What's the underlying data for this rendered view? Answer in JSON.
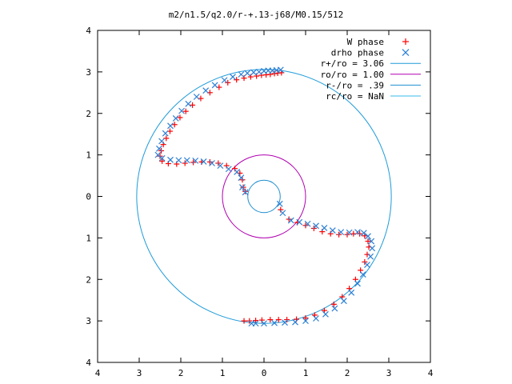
{
  "chart_data": {
    "type": "scatter",
    "title": "m2/n1.5/q2.0/r-+.13-j68/M0.15/512",
    "xlabel": "",
    "ylabel": "",
    "xlim": [
      -4,
      4
    ],
    "ylim": [
      -4,
      4
    ],
    "x_ticks": [
      -4,
      -3,
      -2,
      -1,
      0,
      1,
      2,
      3,
      4
    ],
    "y_ticks": [
      4,
      3,
      2,
      1,
      0,
      -1,
      -2,
      -3,
      -4
    ],
    "x_tick_labels": [
      "4",
      "3",
      "2",
      "1",
      "0",
      "1",
      "2",
      "3",
      "4"
    ],
    "y_tick_labels": [
      "4",
      "3",
      "2",
      "1",
      "0",
      "1",
      "2",
      "3",
      "4"
    ],
    "grid": false,
    "legend_position": "top-right",
    "series": [
      {
        "name": "W phase",
        "marker": "plus",
        "color": "#ff0000",
        "points": [
          [
            0.42,
            2.98
          ],
          [
            0.33,
            2.97
          ],
          [
            0.25,
            2.96
          ],
          [
            0.15,
            2.94
          ],
          [
            0.05,
            2.93
          ],
          [
            -0.06,
            2.92
          ],
          [
            -0.18,
            2.9
          ],
          [
            -0.32,
            2.88
          ],
          [
            -0.48,
            2.85
          ],
          [
            -0.66,
            2.81
          ],
          [
            -0.87,
            2.74
          ],
          [
            -1.08,
            2.63
          ],
          [
            -1.3,
            2.5
          ],
          [
            -1.52,
            2.36
          ],
          [
            -1.72,
            2.2
          ],
          [
            -1.88,
            2.05
          ],
          [
            -2.02,
            1.9
          ],
          [
            -2.15,
            1.73
          ],
          [
            -2.26,
            1.57
          ],
          [
            -2.35,
            1.4
          ],
          [
            -2.42,
            1.25
          ],
          [
            -2.47,
            1.1
          ],
          [
            -2.5,
            0.97
          ],
          [
            -2.45,
            0.85
          ],
          [
            -2.3,
            0.79
          ],
          [
            -2.1,
            0.78
          ],
          [
            -1.9,
            0.8
          ],
          [
            -1.7,
            0.82
          ],
          [
            -1.5,
            0.83
          ],
          [
            -1.3,
            0.83
          ],
          [
            -1.1,
            0.8
          ],
          [
            -0.9,
            0.74
          ],
          [
            -0.7,
            0.67
          ],
          [
            -0.58,
            0.56
          ],
          [
            -0.52,
            0.4
          ],
          [
            -0.5,
            0.22
          ],
          [
            -0.45,
            0.12
          ],
          [
            0.4,
            -0.32
          ],
          [
            0.6,
            -0.55
          ],
          [
            0.8,
            -0.63
          ],
          [
            1.0,
            -0.7
          ],
          [
            1.2,
            -0.77
          ],
          [
            1.4,
            -0.85
          ],
          [
            1.6,
            -0.9
          ],
          [
            1.8,
            -0.92
          ],
          [
            2.0,
            -0.92
          ],
          [
            2.15,
            -0.9
          ],
          [
            2.3,
            -0.9
          ],
          [
            2.42,
            -0.95
          ],
          [
            2.5,
            -1.08
          ],
          [
            2.52,
            -1.22
          ],
          [
            2.48,
            -1.4
          ],
          [
            2.42,
            -1.58
          ],
          [
            2.32,
            -1.78
          ],
          [
            2.2,
            -2.0
          ],
          [
            2.05,
            -2.22
          ],
          [
            1.88,
            -2.42
          ],
          [
            1.68,
            -2.6
          ],
          [
            1.45,
            -2.75
          ],
          [
            1.22,
            -2.86
          ],
          [
            1.0,
            -2.93
          ],
          [
            0.78,
            -2.96
          ],
          [
            0.55,
            -2.97
          ],
          [
            0.35,
            -2.97
          ],
          [
            0.15,
            -2.97
          ],
          [
            -0.05,
            -2.98
          ],
          [
            -0.2,
            -2.99
          ],
          [
            -0.35,
            -3.0
          ],
          [
            -0.48,
            -3.0
          ]
        ]
      },
      {
        "name": "drho phase",
        "marker": "cross",
        "color": "#2a7fd5",
        "points": [
          [
            0.4,
            3.05
          ],
          [
            0.3,
            3.04
          ],
          [
            0.2,
            3.03
          ],
          [
            0.1,
            3.03
          ],
          [
            0.0,
            3.02
          ],
          [
            -0.12,
            3.0
          ],
          [
            -0.25,
            2.99
          ],
          [
            -0.4,
            2.97
          ],
          [
            -0.55,
            2.94
          ],
          [
            -0.75,
            2.88
          ],
          [
            -0.95,
            2.8
          ],
          [
            -1.18,
            2.68
          ],
          [
            -1.4,
            2.55
          ],
          [
            -1.62,
            2.4
          ],
          [
            -1.82,
            2.23
          ],
          [
            -1.98,
            2.06
          ],
          [
            -2.12,
            1.88
          ],
          [
            -2.25,
            1.7
          ],
          [
            -2.37,
            1.52
          ],
          [
            -2.46,
            1.33
          ],
          [
            -2.52,
            1.15
          ],
          [
            -2.55,
            1.0
          ],
          [
            -2.45,
            0.92
          ],
          [
            -2.25,
            0.88
          ],
          [
            -2.05,
            0.87
          ],
          [
            -1.85,
            0.87
          ],
          [
            -1.65,
            0.86
          ],
          [
            -1.45,
            0.84
          ],
          [
            -1.25,
            0.8
          ],
          [
            -1.05,
            0.74
          ],
          [
            -0.85,
            0.66
          ],
          [
            -0.65,
            0.59
          ],
          [
            -0.55,
            0.45
          ],
          [
            -0.52,
            0.22
          ],
          [
            -0.45,
            0.1
          ],
          [
            0.38,
            -0.18
          ],
          [
            0.45,
            -0.4
          ],
          [
            0.65,
            -0.58
          ],
          [
            0.85,
            -0.62
          ],
          [
            1.05,
            -0.66
          ],
          [
            1.25,
            -0.71
          ],
          [
            1.45,
            -0.76
          ],
          [
            1.65,
            -0.82
          ],
          [
            1.85,
            -0.86
          ],
          [
            2.05,
            -0.87
          ],
          [
            2.25,
            -0.86
          ],
          [
            2.4,
            -0.88
          ],
          [
            2.5,
            -0.96
          ],
          [
            2.58,
            -1.08
          ],
          [
            2.6,
            -1.25
          ],
          [
            2.56,
            -1.45
          ],
          [
            2.48,
            -1.65
          ],
          [
            2.38,
            -1.88
          ],
          [
            2.25,
            -2.1
          ],
          [
            2.1,
            -2.32
          ],
          [
            1.92,
            -2.52
          ],
          [
            1.7,
            -2.7
          ],
          [
            1.48,
            -2.84
          ],
          [
            1.25,
            -2.94
          ],
          [
            1.0,
            -3.0
          ],
          [
            0.75,
            -3.03
          ],
          [
            0.5,
            -3.04
          ],
          [
            0.25,
            -3.05
          ],
          [
            0.0,
            -3.06
          ],
          [
            -0.2,
            -3.06
          ],
          [
            -0.3,
            -3.06
          ]
        ]
      }
    ],
    "reference_circles": [
      {
        "name": "r+/ro = 3.06",
        "radius": 3.06,
        "color": "#1f9bd9"
      },
      {
        "name": "ro/ro = 1.00",
        "radius": 1.0,
        "color": "#b000b0"
      },
      {
        "name": "r-/ro = .39",
        "radius": 0.39,
        "color": "#1f8fd0"
      },
      {
        "name": "rc/ro = NaN",
        "radius": null,
        "color": "#3ab8e8"
      }
    ]
  }
}
